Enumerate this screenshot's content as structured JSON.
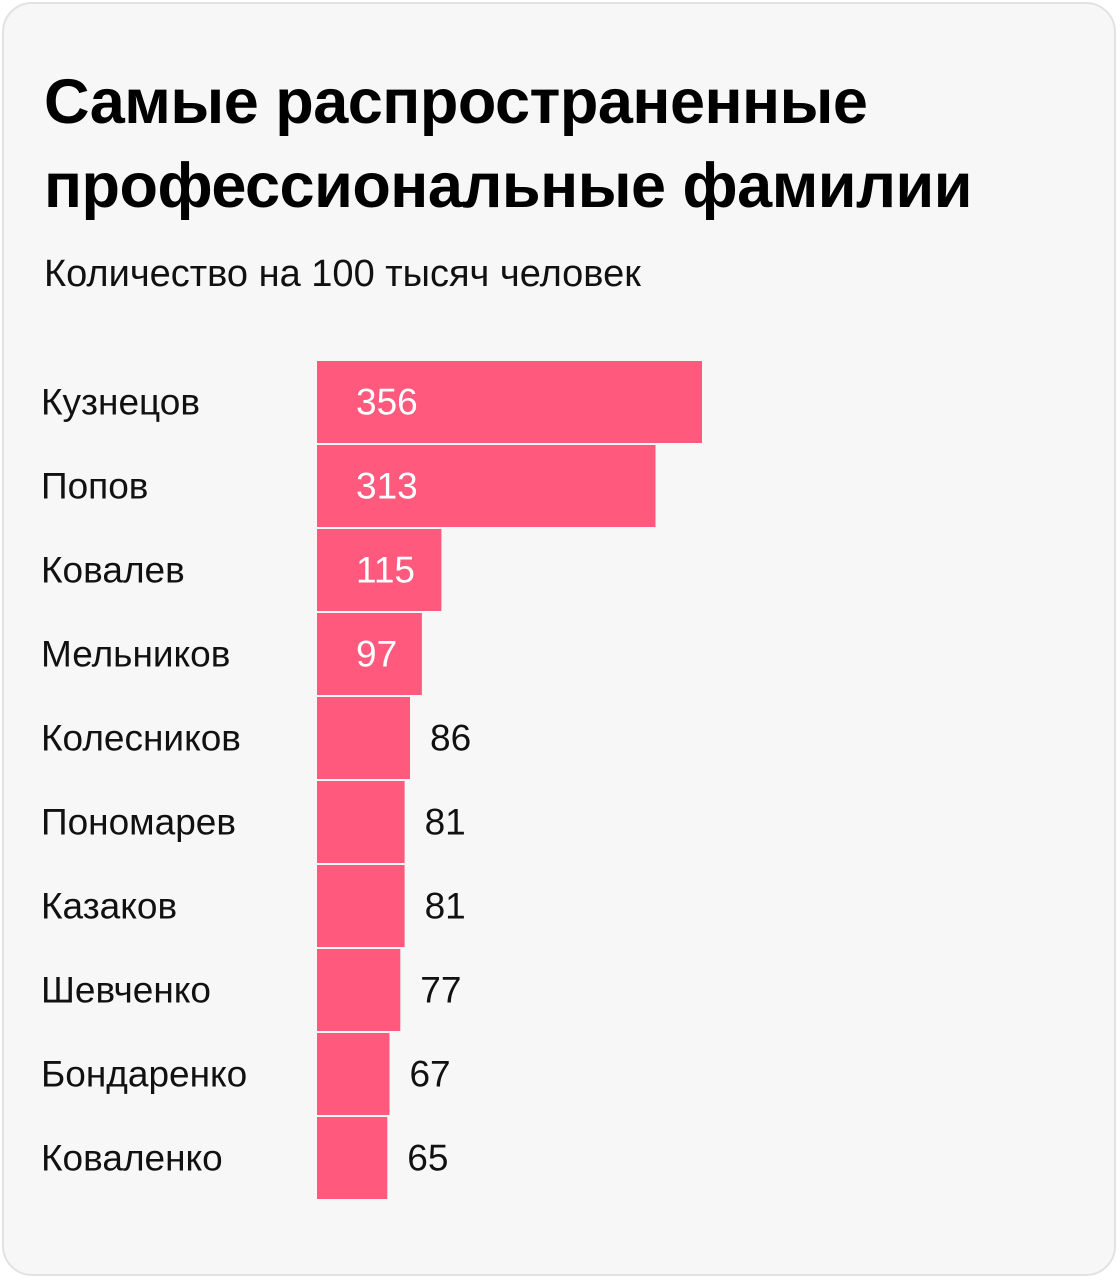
{
  "chart_data": {
    "type": "bar",
    "orientation": "horizontal",
    "title": "Самые распространенные профессиональные фамилии",
    "subtitle": "Количество на 100 тысяч человек",
    "categories": [
      "Кузнецов",
      "Попов",
      "Ковалев",
      "Мельников",
      "Колесников",
      "Пономарев",
      "Казаков",
      "Шевченко",
      "Бондаренко",
      "Коваленко"
    ],
    "values": [
      356,
      313,
      115,
      97,
      86,
      81,
      81,
      77,
      67,
      65
    ],
    "value_labels": [
      "356",
      "313",
      "115",
      "97",
      "86",
      "81",
      "81",
      "77",
      "67",
      "65"
    ],
    "xlim": [
      0,
      360
    ],
    "grid": false,
    "legend": "none",
    "colors": {
      "bar": "#ff5a7d",
      "label_inside": "#ffffff",
      "label_outside": "#111111",
      "background": "#f7f7f7"
    }
  }
}
